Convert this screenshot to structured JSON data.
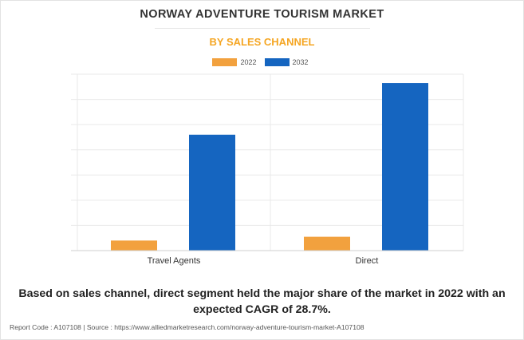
{
  "header": {
    "title": "NORWAY ADVENTURE TOURISM MARKET",
    "subtitle": "BY SALES CHANNEL"
  },
  "colors": {
    "2022": "#f2a13e",
    "2032": "#1565c0"
  },
  "chart_data": {
    "type": "bar",
    "title": "NORWAY ADVENTURE TOURISM MARKET",
    "subtitle": "BY SALES CHANNEL",
    "categories": [
      "Travel Agents",
      "Direct"
    ],
    "series": [
      {
        "name": "2022",
        "values": [
          4,
          5.5
        ]
      },
      {
        "name": "2032",
        "values": [
          46,
          66.5
        ]
      }
    ],
    "ylim": [
      0,
      70
    ],
    "ytick_count": 7,
    "grid": true,
    "legend": "top-center",
    "xlabel": "",
    "ylabel": ""
  },
  "caption": "Based on sales channel, direct segment held the major share of the market in 2022 with an expected CAGR of 28.7%.",
  "footer": "Report Code : A107108  |  Source : https://www.alliedmarketresearch.com/norway-adventure-tourism-market-A107108"
}
